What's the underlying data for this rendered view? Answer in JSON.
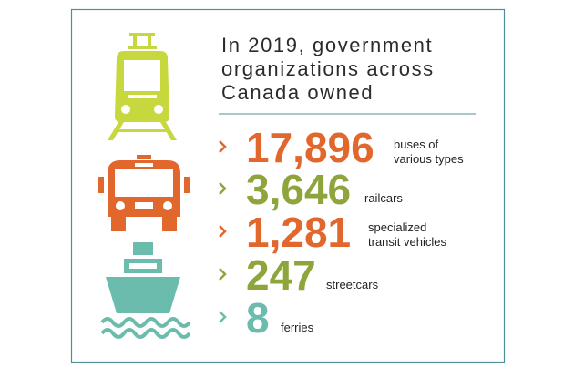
{
  "title": [
    "In 2019, government",
    "organizations across",
    "Canada owned"
  ],
  "items": [
    {
      "number": "17,896",
      "label": [
        "buses of",
        "various types"
      ],
      "color": "#e2672c"
    },
    {
      "number": "3,646",
      "label": [
        "railcars"
      ],
      "color": "#8ea53b"
    },
    {
      "number": "1,281",
      "label": [
        "specialized",
        "transit vehicles"
      ],
      "color": "#e2672c"
    },
    {
      "number": "247",
      "label": [
        "streetcars"
      ],
      "color": "#8ea53b"
    },
    {
      "number": "8",
      "label": [
        "ferries"
      ],
      "color": "#6cbcae"
    }
  ]
}
